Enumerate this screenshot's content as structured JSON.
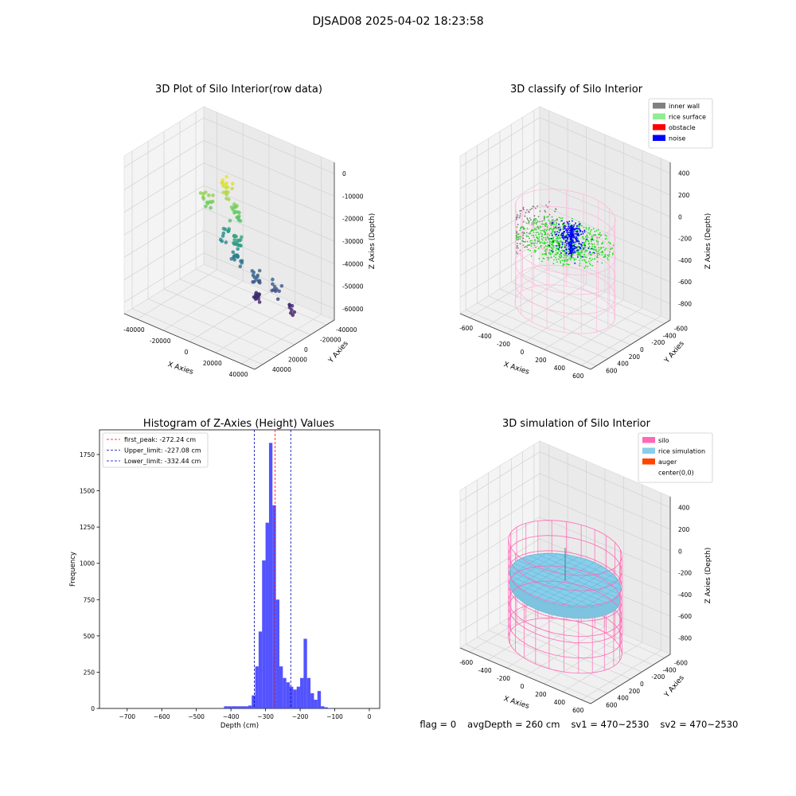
{
  "figure": {
    "suptitle": "DJSAD08 2025-04-02 18:23:58",
    "footer": [
      "flag = 0",
      "avgDepth = 260 cm",
      "sv1 = 470~2530",
      "sv2 = 470~2530"
    ]
  },
  "colors": {
    "inner_wall": "#808080",
    "rice_surface": "#90ee90",
    "obstacle": "#ff0000",
    "noise": "#0000ff",
    "silo": "#ff69b4",
    "rice_simulation": "#87ceeb",
    "auger": "#ff4500",
    "hist_bar": "#4040ff",
    "first_peak": "#ff0000",
    "limit_line": "#0000aa"
  },
  "chart_data": [
    {
      "type": "scatter",
      "title": "3D Plot of Silo Interior(row data)",
      "xlabel": "X Axies",
      "ylabel": "Y Axies",
      "zlabel": "Z Axies (Depth)",
      "x_ticks": [
        "-40000",
        "-20000",
        "0",
        "20000",
        "40000"
      ],
      "y_ticks": [
        "-40000",
        "-20000",
        "0",
        "20000",
        "40000"
      ],
      "z_ticks": [
        "0",
        "-10000",
        "-20000",
        "-30000",
        "-40000",
        "-50000",
        "-60000"
      ],
      "xlim": [
        -50000,
        50000
      ],
      "ylim": [
        -50000,
        50000
      ],
      "zlim": [
        -65000,
        5000
      ],
      "colormap": "viridis"
    },
    {
      "type": "scatter",
      "title": "3D classify of Silo Interior",
      "xlabel": "X Axies",
      "ylabel": "Y Axies",
      "zlabel": "Z Axies (Depth)",
      "x_ticks": [
        "-600",
        "-400",
        "-200",
        "0",
        "200",
        "400",
        "600"
      ],
      "y_ticks": [
        "-600",
        "-400",
        "-200",
        "0",
        "200",
        "400",
        "600"
      ],
      "z_ticks": [
        "400",
        "200",
        "0",
        "-200",
        "-400",
        "-600",
        "-800"
      ],
      "xlim": [
        -700,
        700
      ],
      "ylim": [
        -700,
        700
      ],
      "zlim": [
        -950,
        500
      ],
      "legend": [
        "inner wall",
        "rice surface",
        "obstacle",
        "noise"
      ],
      "legend_position": "top-right"
    },
    {
      "type": "bar",
      "title": "Histogram of Z-Axies (Height) Values",
      "xlabel": "Depth (cm)",
      "ylabel": "Frequency",
      "x_ticks": [
        -700,
        -600,
        -500,
        -400,
        -300,
        -200,
        -100,
        0
      ],
      "y_ticks": [
        0,
        250,
        500,
        750,
        1000,
        1250,
        1500,
        1750
      ],
      "xlim": [
        -780,
        30
      ],
      "ylim": [
        0,
        1920
      ],
      "bin_width": 10,
      "bins": [
        [
          -420,
          15
        ],
        [
          -410,
          15
        ],
        [
          -400,
          15
        ],
        [
          -390,
          15
        ],
        [
          -380,
          15
        ],
        [
          -370,
          15
        ],
        [
          -360,
          15
        ],
        [
          -350,
          20
        ],
        [
          -340,
          90
        ],
        [
          -330,
          290
        ],
        [
          -320,
          530
        ],
        [
          -310,
          1020
        ],
        [
          -300,
          1280
        ],
        [
          -290,
          1830
        ],
        [
          -280,
          1400
        ],
        [
          -270,
          750
        ],
        [
          -260,
          290
        ],
        [
          -250,
          210
        ],
        [
          -240,
          180
        ],
        [
          -230,
          150
        ],
        [
          -220,
          130
        ],
        [
          -210,
          150
        ],
        [
          -200,
          210
        ],
        [
          -190,
          480
        ],
        [
          -180,
          210
        ],
        [
          -170,
          105
        ],
        [
          -160,
          60
        ],
        [
          -150,
          120
        ],
        [
          -140,
          15
        ],
        [
          -130,
          8
        ],
        [
          -120,
          3
        ]
      ],
      "lines": [
        {
          "label": "first_peak: -272.24 cm",
          "x": -272.24,
          "style": "first_peak"
        },
        {
          "label": "Upper_limit: -227.08 cm",
          "x": -227.08,
          "style": "limit_line"
        },
        {
          "label": "Lower_limit: -332.44 cm",
          "x": -332.44,
          "style": "limit_line"
        }
      ],
      "legend_position": "top-left"
    },
    {
      "type": "scatter",
      "title": "3D simulation of Silo Interior",
      "xlabel": "X Axies",
      "ylabel": "Y Axies",
      "zlabel": "Z Axies (Depth)",
      "x_ticks": [
        "-600",
        "-400",
        "-200",
        "0",
        "200",
        "400",
        "600"
      ],
      "y_ticks": [
        "-600",
        "-400",
        "-200",
        "0",
        "200",
        "400",
        "600"
      ],
      "z_ticks": [
        "400",
        "200",
        "0",
        "-200",
        "-400",
        "-600",
        "-800"
      ],
      "xlim": [
        -700,
        700
      ],
      "ylim": [
        -700,
        700
      ],
      "zlim": [
        -950,
        500
      ],
      "legend": [
        "silo",
        "rice simulation",
        "auger",
        "center(0,0)"
      ],
      "legend_position": "top-right"
    }
  ]
}
